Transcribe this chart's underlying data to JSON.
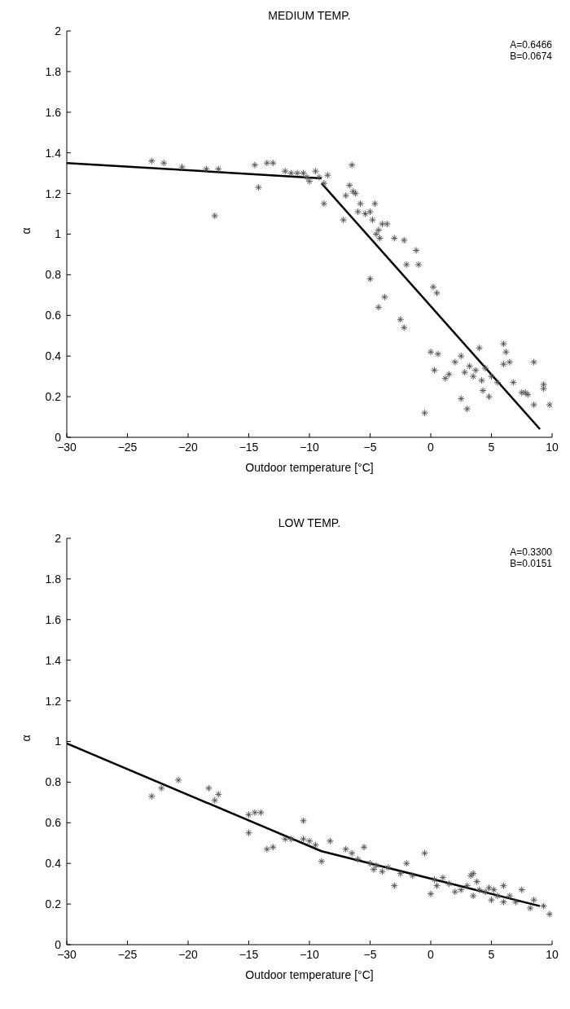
{
  "chart_data": [
    {
      "type": "scatter",
      "title": "MEDIUM TEMP.",
      "xlabel": "Outdoor temperature [°C]",
      "ylabel": "α",
      "annotations": [
        "A=0.6466",
        "B=0.0674"
      ],
      "xlim": [
        -30,
        10
      ],
      "xticks": [
        -30,
        -25,
        -20,
        -15,
        -10,
        -5,
        0,
        5,
        10
      ],
      "ylim": [
        0,
        2
      ],
      "yticks": [
        0,
        0.2,
        0.4,
        0.6,
        0.8,
        1,
        1.2,
        1.4,
        1.6,
        1.8,
        2
      ],
      "grid": false,
      "legend": false,
      "series": [
        {
          "marker": "cross",
          "color": "#555555",
          "x": [
            -23,
            -22,
            -20.5,
            -18.5,
            -17.8,
            -17.5,
            -14.5,
            -14.2,
            -13.5,
            -13,
            -12,
            -11.5,
            -11,
            -10.5,
            -10.2,
            -10,
            -9.5,
            -9.2,
            -8.8,
            -8.5,
            -8.8,
            -7,
            -6.5,
            -6.7,
            -6.4,
            -6.2,
            -7.2,
            -6,
            -5.8,
            -5.4,
            -5,
            -4.8,
            -4.6,
            -4.5,
            -4.3,
            -4,
            -3.6,
            -4.2,
            -3,
            -2.2,
            -2,
            -1.2,
            -1,
            -5,
            -4.3,
            -3.8,
            -2.5,
            -2.2,
            0.2,
            0.5,
            -0.5,
            0,
            0.6,
            0.3,
            1.2,
            1.5,
            2,
            2.5,
            2.5,
            3,
            2.8,
            3.2,
            3.5,
            3.7,
            4,
            4.2,
            4.5,
            5,
            4.3,
            4.8,
            5.5,
            6,
            6.2,
            6,
            6.5,
            6.8,
            7.5,
            8,
            8.5,
            8.5,
            9.3,
            9.3,
            9.8,
            7.8
          ],
          "values": [
            1.36,
            1.35,
            1.33,
            1.32,
            1.09,
            1.32,
            1.34,
            1.23,
            1.35,
            1.35,
            1.31,
            1.3,
            1.3,
            1.3,
            1.28,
            1.26,
            1.31,
            1.28,
            1.25,
            1.29,
            1.15,
            1.19,
            1.34,
            1.24,
            1.21,
            1.2,
            1.07,
            1.11,
            1.15,
            1.1,
            1.11,
            1.07,
            1.15,
            1,
            1.02,
            1.05,
            1.05,
            0.98,
            0.98,
            0.97,
            0.85,
            0.92,
            0.85,
            0.78,
            0.64,
            0.69,
            0.58,
            0.54,
            0.74,
            0.71,
            0.12,
            0.42,
            0.41,
            0.33,
            0.29,
            0.31,
            0.37,
            0.4,
            0.19,
            0.14,
            0.32,
            0.35,
            0.3,
            0.33,
            0.44,
            0.28,
            0.34,
            0.3,
            0.23,
            0.2,
            0.27,
            0.46,
            0.42,
            0.36,
            0.37,
            0.27,
            0.22,
            0.21,
            0.37,
            0.16,
            0.24,
            0.26,
            0.16,
            0.22
          ]
        },
        {
          "type": "line",
          "marker": "none",
          "color": "#000000",
          "x": [
            -30,
            -9
          ],
          "values": [
            1.35,
            1.275
          ]
        },
        {
          "type": "line",
          "marker": "none",
          "color": "#000000",
          "x": [
            -9,
            9
          ],
          "values": [
            1.25,
            0.04
          ]
        }
      ]
    },
    {
      "type": "scatter",
      "title": "LOW TEMP.",
      "xlabel": "Outdoor temperature [°C]",
      "ylabel": "α",
      "annotations": [
        "A=0.3300",
        "B=0.0151"
      ],
      "xlim": [
        -30,
        10
      ],
      "xticks": [
        -30,
        -25,
        -20,
        -15,
        -10,
        -5,
        0,
        5,
        10
      ],
      "ylim": [
        0,
        2
      ],
      "yticks": [
        0,
        0.2,
        0.4,
        0.6,
        0.8,
        1,
        1.2,
        1.4,
        1.6,
        1.8,
        2
      ],
      "grid": false,
      "legend": false,
      "series": [
        {
          "marker": "cross",
          "color": "#555555",
          "x": [
            -23,
            -22.2,
            -20.8,
            -18.3,
            -17.8,
            -17.5,
            -15,
            -15,
            -14.5,
            -14,
            -13.5,
            -13,
            -12,
            -11.5,
            -10.5,
            -10.5,
            -10,
            -9.5,
            -9,
            -8.3,
            -7,
            -6.5,
            -6,
            -5.5,
            -5,
            -4.7,
            -4.5,
            -4,
            -3.5,
            -3,
            -2.5,
            -2,
            -1.5,
            -0.5,
            0,
            0.3,
            0.5,
            1,
            1.5,
            2,
            2.5,
            3,
            3.3,
            3.5,
            3.8,
            3.5,
            4,
            4.5,
            5,
            5.2,
            6,
            6,
            6.5,
            7,
            7.5,
            8.2,
            8.5,
            9.3,
            9.8,
            4.8,
            5.5
          ],
          "values": [
            0.73,
            0.77,
            0.81,
            0.77,
            0.71,
            0.74,
            0.64,
            0.55,
            0.65,
            0.65,
            0.47,
            0.48,
            0.52,
            0.52,
            0.61,
            0.52,
            0.51,
            0.49,
            0.41,
            0.51,
            0.47,
            0.45,
            0.42,
            0.48,
            0.4,
            0.37,
            0.39,
            0.36,
            0.38,
            0.29,
            0.35,
            0.4,
            0.34,
            0.45,
            0.25,
            0.32,
            0.29,
            0.33,
            0.3,
            0.26,
            0.27,
            0.29,
            0.34,
            0.35,
            0.31,
            0.24,
            0.27,
            0.26,
            0.22,
            0.27,
            0.21,
            0.29,
            0.24,
            0.21,
            0.27,
            0.18,
            0.22,
            0.19,
            0.15,
            0.28,
            0.24
          ]
        },
        {
          "type": "line",
          "marker": "none",
          "color": "#000000",
          "x": [
            -30,
            -9,
            9
          ],
          "values": [
            0.99,
            0.46,
            0.19
          ]
        }
      ]
    }
  ]
}
